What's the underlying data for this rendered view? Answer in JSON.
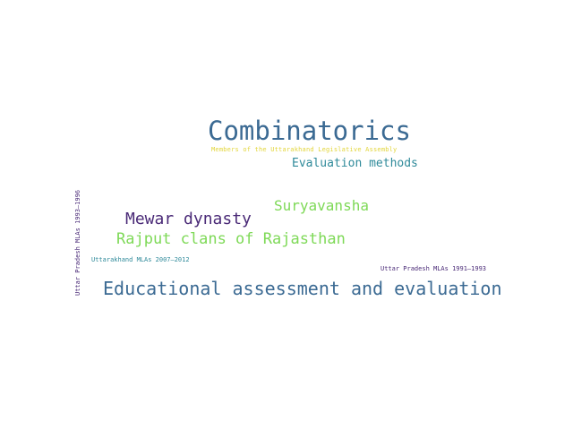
{
  "word_cloud": {
    "words": [
      {
        "text": "Combinatorics",
        "color": "#3b6a93"
      },
      {
        "text": "Members of the Uttarakhand Legislative Assembly",
        "color": "#e2d53a"
      },
      {
        "text": "Evaluation methods",
        "color": "#2f8a9a"
      },
      {
        "text": "Suryavansha",
        "color": "#7ed957"
      },
      {
        "text": "Mewar dynasty",
        "color": "#4a2a77"
      },
      {
        "text": "Rajput clans of Rajasthan",
        "color": "#7ed957"
      },
      {
        "text": "Uttarakhand MLAs 2007–2012",
        "color": "#2f8a9a"
      },
      {
        "text": "Uttar Pradesh MLAs 1991–1993",
        "color": "#4a2a77"
      },
      {
        "text": "Uttar Pradesh MLAs 1993–1996",
        "color": "#4a2a77"
      },
      {
        "text": "Educational assessment and evaluation",
        "color": "#3b6a93"
      }
    ]
  }
}
